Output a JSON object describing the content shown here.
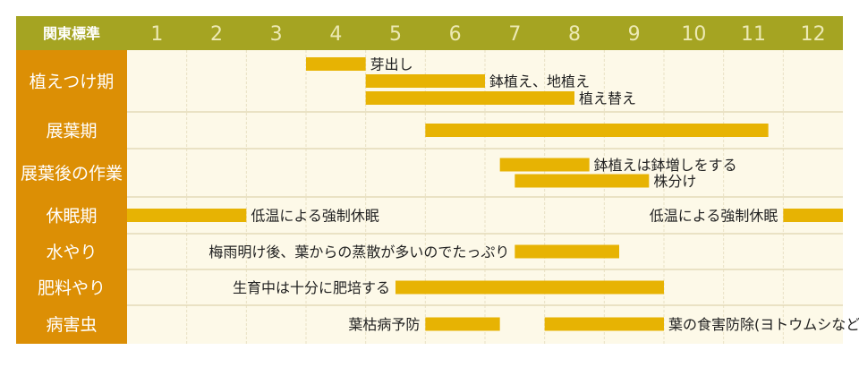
{
  "chart_data": {
    "type": "gantt",
    "corner_label": "関東標準",
    "months": [
      "1",
      "2",
      "3",
      "4",
      "5",
      "6",
      "7",
      "8",
      "9",
      "10",
      "11",
      "12"
    ],
    "colors": {
      "header_bg": "#a5a422",
      "header_text": "#ece9b4",
      "corner_text": "#ffffff",
      "row_label_bg": "#dc8f05",
      "row_label_text": "#ffffff",
      "grid_bg": "#fdf9e8",
      "grid_line": "#e9e1c4",
      "row_line": "#e4dab8",
      "bar": "#e7b303",
      "bar_text": "#222222"
    },
    "rows": [
      {
        "label": "植えつけ期",
        "bars": [
          {
            "start": 4.0,
            "end": 5.0,
            "text": "芽出し"
          },
          {
            "start": 5.0,
            "end": 7.0,
            "text": "鉢植え、地植え"
          },
          {
            "start": 5.0,
            "end": 8.5,
            "text": "植え替え"
          }
        ]
      },
      {
        "label": "展葉期",
        "bars": [
          {
            "start": 6.0,
            "end": 11.75,
            "text": ""
          }
        ]
      },
      {
        "label": "展葉後の作業",
        "bars": [
          {
            "start": 7.25,
            "end": 8.75,
            "text": "鉢植えは鉢増しをする"
          },
          {
            "start": 7.5,
            "end": 9.75,
            "text": "株分け"
          }
        ]
      },
      {
        "label": "休眠期",
        "bars": [
          {
            "start": 1.0,
            "end": 3.0,
            "text": "低温による強制休眠"
          },
          {
            "start": 12.0,
            "end": 13.0,
            "text": "低温による強制休眠",
            "text_before": true
          }
        ]
      },
      {
        "label": "水やり",
        "bars": [
          {
            "start": 7.5,
            "end": 9.25,
            "text": "梅雨明け後、葉からの蒸散が多いのでたっぷり",
            "text_before": true
          }
        ]
      },
      {
        "label": "肥料やり",
        "bars": [
          {
            "start": 5.5,
            "end": 10.0,
            "text": "生育中は十分に肥培する",
            "text_before": true
          }
        ]
      },
      {
        "label": "病害虫",
        "bars": [
          {
            "start": 6.0,
            "end": 7.25,
            "text": "葉枯病予防",
            "text_before": true
          },
          {
            "start": 8.0,
            "end": 10.0,
            "text": "葉の食害防除(ヨトウムシなど)"
          }
        ]
      }
    ]
  }
}
